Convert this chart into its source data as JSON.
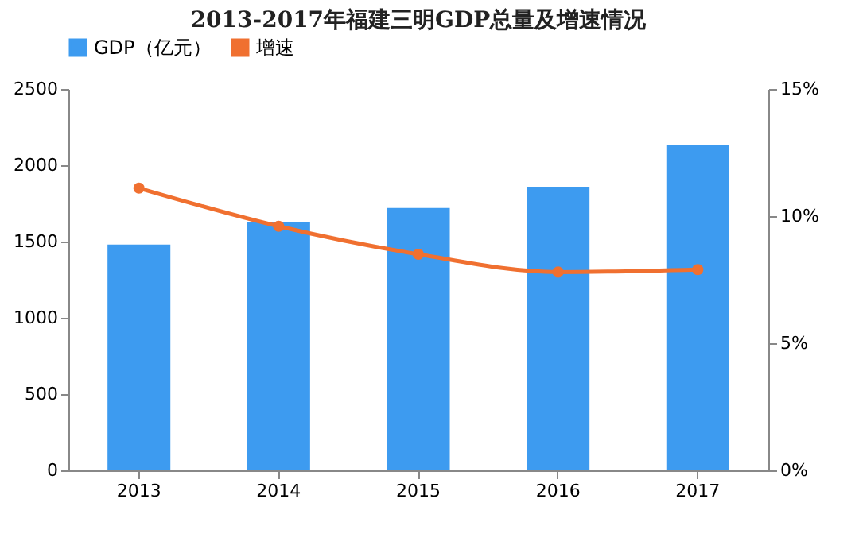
{
  "chart_data": {
    "type": "bar",
    "title": "2013-2017年福建三明GDP总量及增速情况",
    "categories": [
      "2013",
      "2014",
      "2015",
      "2016",
      "2017"
    ],
    "series": [
      {
        "name": "GDP（亿元）",
        "color": "#3d9bf0",
        "values": [
          1480,
          1625,
          1720,
          1860,
          2130
        ]
      },
      {
        "name": "增速",
        "type": "line",
        "axis": "y2",
        "color": "#f07030",
        "values": [
          11.1,
          9.6,
          8.5,
          7.8,
          7.9
        ]
      }
    ],
    "ylim": [
      0,
      2500
    ],
    "yticks": [
      0,
      500,
      1000,
      1500,
      2000,
      2500
    ],
    "y2lim": [
      0,
      15
    ],
    "y2ticks": [
      {
        "value": 0,
        "label": "0%"
      },
      {
        "value": 5,
        "label": "5%"
      },
      {
        "value": 10,
        "label": "10%"
      },
      {
        "value": 15,
        "label": "15%"
      }
    ],
    "legend": "top",
    "marker": "circle",
    "grid": false
  }
}
